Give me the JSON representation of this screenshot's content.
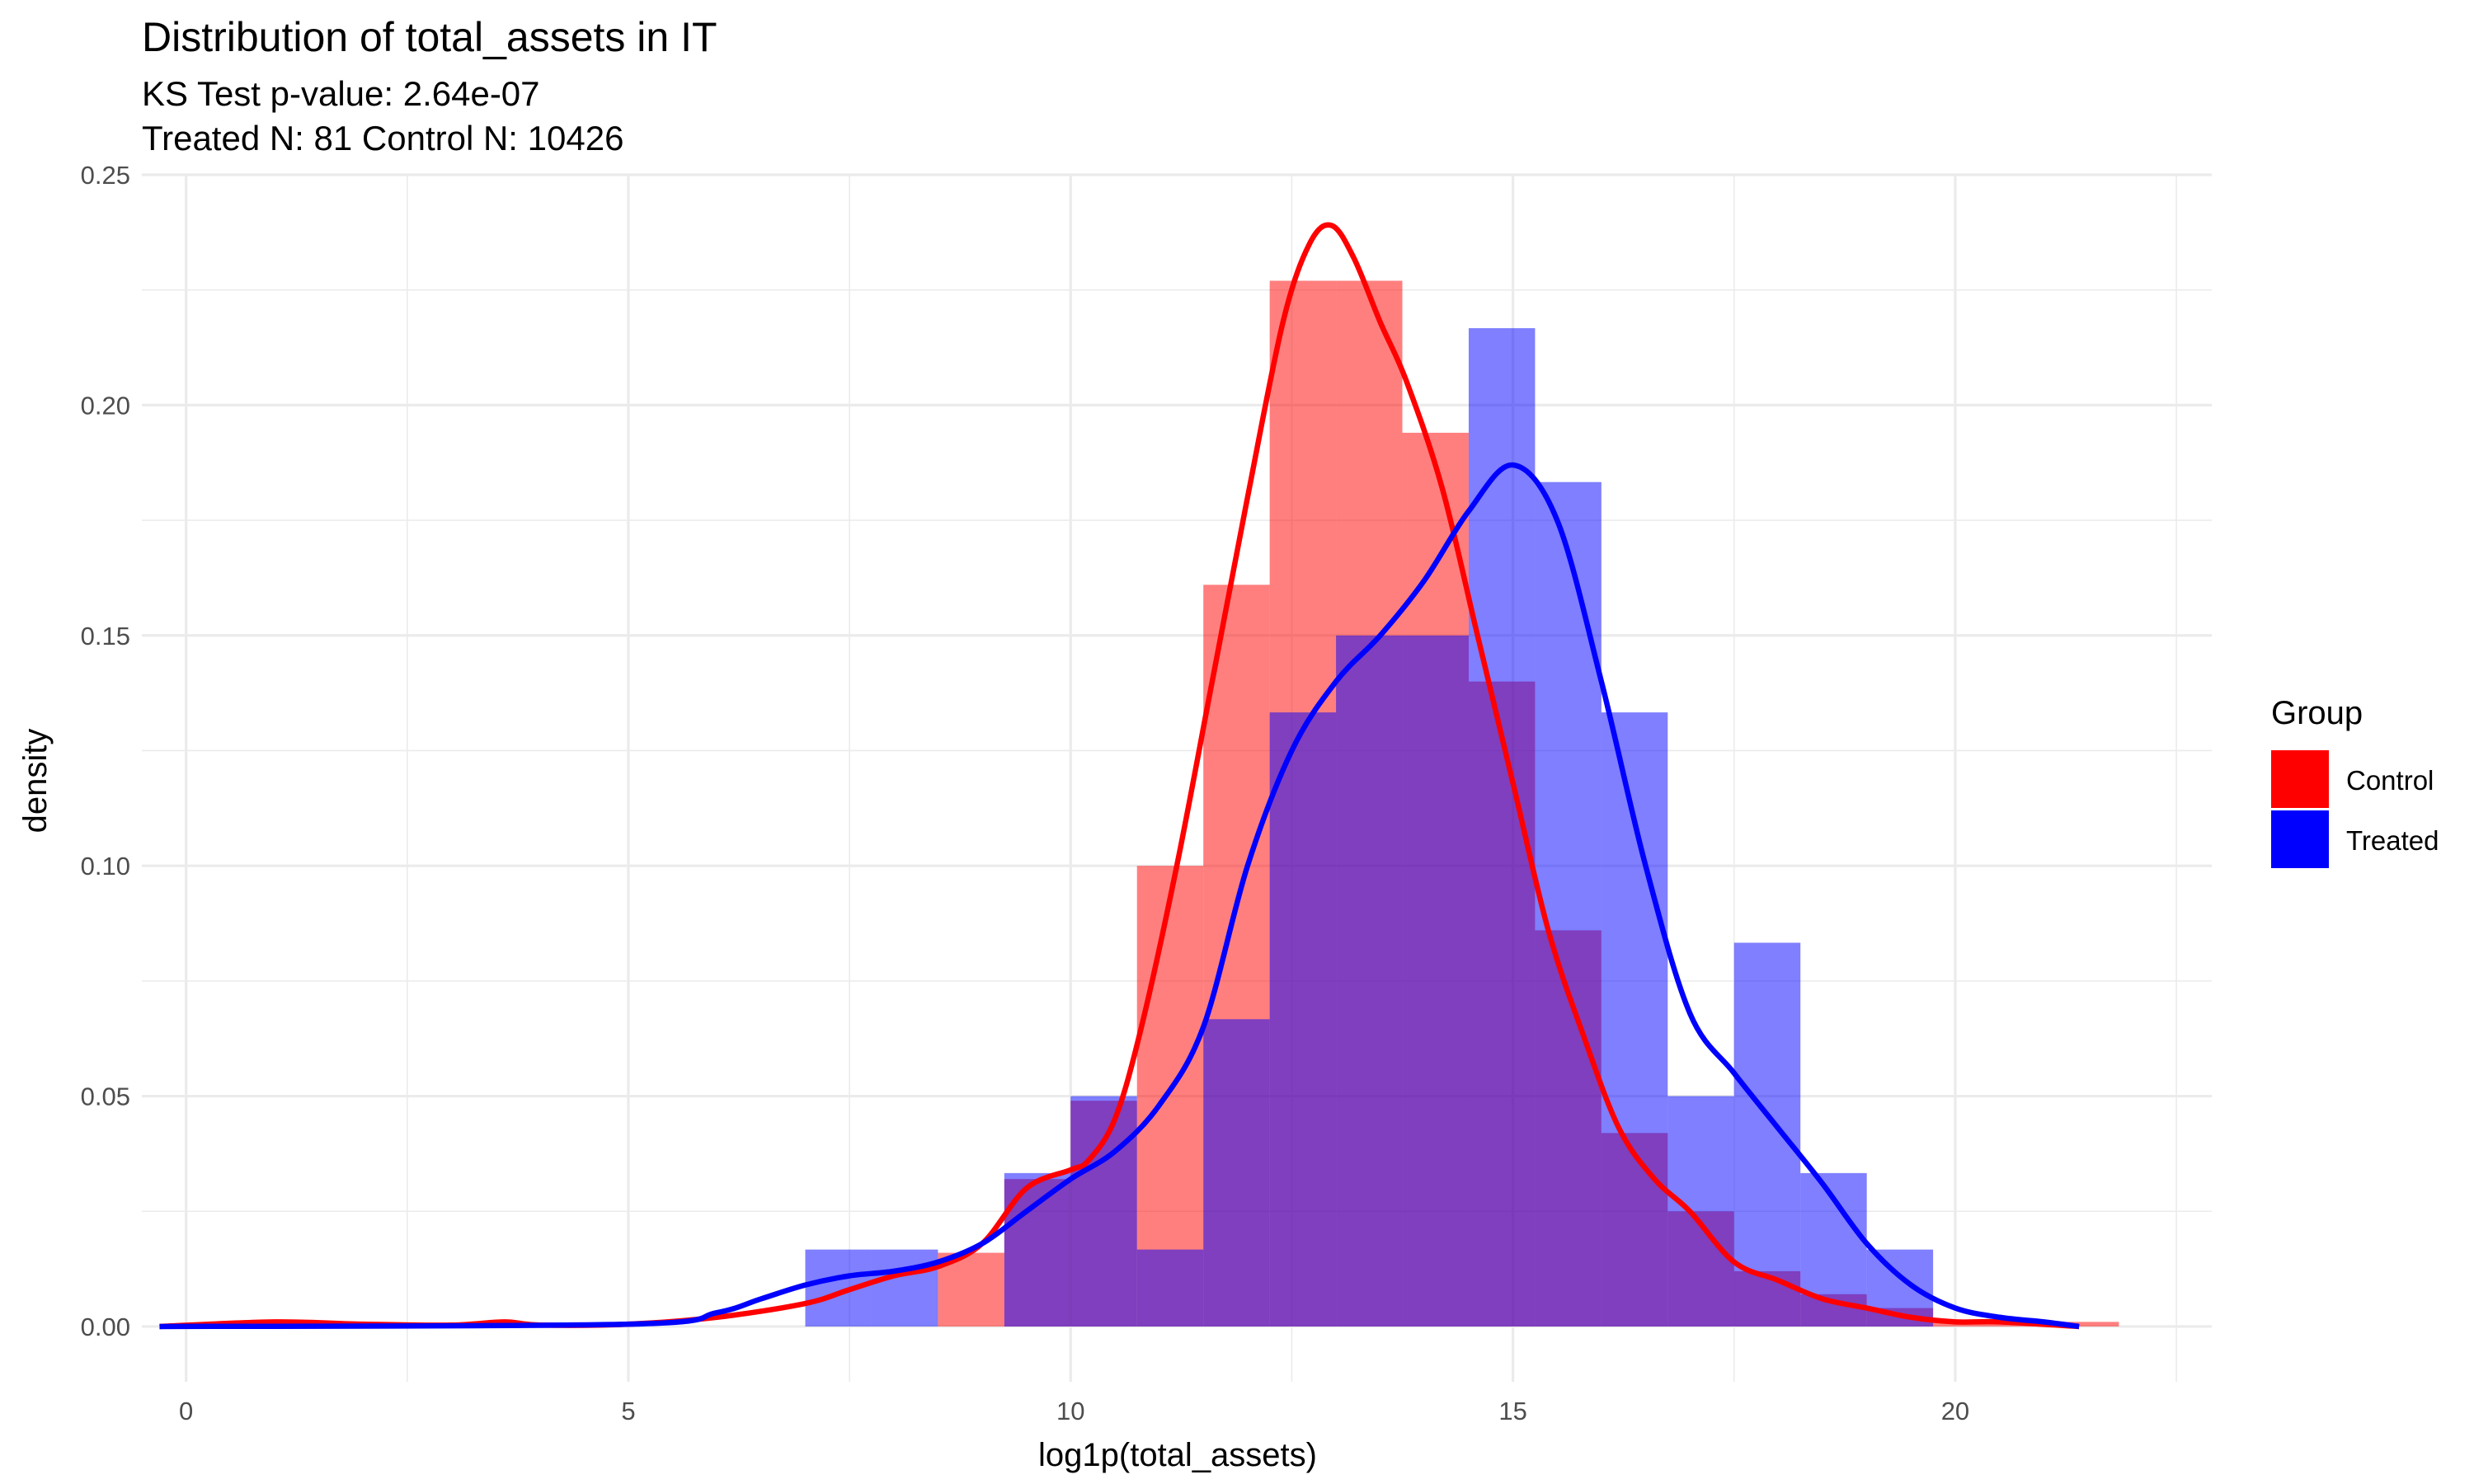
{
  "chart_data": {
    "type": "histogram",
    "title": "Distribution of total_assets in IT",
    "subtitle_lines": [
      "KS Test p-value: 2.64e-07",
      "Treated N: 81 Control N: 10426"
    ],
    "xlabel": "log1p(total_assets)",
    "ylabel": "density",
    "xlim": [
      -0.5,
      22.9
    ],
    "ylim": [
      -0.012,
      0.25
    ],
    "x_ticks": [
      0,
      5,
      10,
      15,
      20
    ],
    "x_tick_labels": [
      "0",
      "5",
      "10",
      "15",
      "20"
    ],
    "y_ticks": [
      0.0,
      0.05,
      0.1,
      0.15,
      0.2,
      0.25
    ],
    "y_tick_labels": [
      "0.00",
      "0.05",
      "0.10",
      "0.15",
      "0.20",
      "0.25"
    ],
    "grid": true,
    "legend": {
      "title": "Group",
      "position": "right",
      "entries": [
        {
          "label": "Control",
          "color": "#ff0000"
        },
        {
          "label": "Treated",
          "color": "#0000ff"
        }
      ]
    },
    "bin_width": 0.75,
    "series": [
      {
        "name": "Control",
        "color": "#ff0000",
        "bins": [
          {
            "x0": 8.5,
            "x1": 9.25,
            "y": 0.016
          },
          {
            "x0": 9.25,
            "x1": 10.0,
            "y": 0.032
          },
          {
            "x0": 10.0,
            "x1": 10.75,
            "y": 0.049
          },
          {
            "x0": 10.75,
            "x1": 11.5,
            "y": 0.1
          },
          {
            "x0": 11.5,
            "x1": 12.25,
            "y": 0.161
          },
          {
            "x0": 12.25,
            "x1": 13.0,
            "y": 0.227
          },
          {
            "x0": 13.0,
            "x1": 13.75,
            "y": 0.227
          },
          {
            "x0": 13.75,
            "x1": 14.5,
            "y": 0.194
          },
          {
            "x0": 14.5,
            "x1": 15.25,
            "y": 0.14
          },
          {
            "x0": 15.25,
            "x1": 16.0,
            "y": 0.086
          },
          {
            "x0": 16.0,
            "x1": 16.75,
            "y": 0.042
          },
          {
            "x0": 16.75,
            "x1": 17.5,
            "y": 0.025
          },
          {
            "x0": 17.5,
            "x1": 18.25,
            "y": 0.012
          },
          {
            "x0": 18.25,
            "x1": 19.0,
            "y": 0.007
          },
          {
            "x0": 19.0,
            "x1": 19.75,
            "y": 0.004
          },
          {
            "x0": 19.75,
            "x1": 20.5,
            "y": 0.001
          },
          {
            "x0": 20.5,
            "x1": 21.25,
            "y": 0.001
          },
          {
            "x0": 21.25,
            "x1": 21.85,
            "y": 0.001
          }
        ],
        "density_x": [
          -0.3,
          1,
          2,
          3,
          3.6,
          4,
          5,
          6,
          7,
          7.5,
          8,
          8.5,
          9,
          9.5,
          10,
          10.2,
          10.5,
          10.8,
          11.2,
          11.6,
          12,
          12.4,
          12.7,
          12.95,
          13.2,
          13.5,
          13.8,
          14.2,
          14.6,
          15,
          15.4,
          15.8,
          16.2,
          16.6,
          17,
          17.5,
          18,
          18.5,
          19,
          19.5,
          20,
          20.5,
          21.4
        ],
        "density_y": [
          0.0,
          0.001,
          0.0005,
          0.0003,
          0.001,
          0.0003,
          0.0005,
          0.002,
          0.005,
          0.008,
          0.011,
          0.013,
          0.018,
          0.03,
          0.034,
          0.036,
          0.045,
          0.065,
          0.1,
          0.14,
          0.18,
          0.218,
          0.235,
          0.239,
          0.232,
          0.218,
          0.205,
          0.182,
          0.15,
          0.118,
          0.086,
          0.063,
          0.043,
          0.032,
          0.025,
          0.014,
          0.01,
          0.006,
          0.004,
          0.002,
          0.001,
          0.001,
          0.0
        ]
      },
      {
        "name": "Treated",
        "color": "#0000ff",
        "bins": [
          {
            "x0": 7.0,
            "x1": 7.75,
            "y": 0.0167
          },
          {
            "x0": 7.75,
            "x1": 8.5,
            "y": 0.0167
          },
          {
            "x0": 8.5,
            "x1": 9.25,
            "y": 0.0
          },
          {
            "x0": 9.25,
            "x1": 10.0,
            "y": 0.0333
          },
          {
            "x0": 10.0,
            "x1": 10.75,
            "y": 0.05
          },
          {
            "x0": 10.75,
            "x1": 11.5,
            "y": 0.0167
          },
          {
            "x0": 11.5,
            "x1": 12.25,
            "y": 0.0667
          },
          {
            "x0": 12.25,
            "x1": 13.0,
            "y": 0.1333
          },
          {
            "x0": 13.0,
            "x1": 13.75,
            "y": 0.15
          },
          {
            "x0": 13.75,
            "x1": 14.5,
            "y": 0.15
          },
          {
            "x0": 14.5,
            "x1": 15.25,
            "y": 0.2167
          },
          {
            "x0": 15.25,
            "x1": 16.0,
            "y": 0.1833
          },
          {
            "x0": 16.0,
            "x1": 16.75,
            "y": 0.1333
          },
          {
            "x0": 16.75,
            "x1": 17.5,
            "y": 0.05
          },
          {
            "x0": 17.5,
            "x1": 18.25,
            "y": 0.0833
          },
          {
            "x0": 18.25,
            "x1": 19.0,
            "y": 0.0333
          },
          {
            "x0": 19.0,
            "x1": 19.75,
            "y": 0.0167
          }
        ],
        "density_x": [
          -0.3,
          5,
          6,
          6.5,
          7,
          7.5,
          8,
          8.5,
          9,
          9.5,
          10,
          10.5,
          11,
          11.5,
          12,
          12.5,
          13,
          13.5,
          14,
          14.5,
          15,
          15.5,
          16,
          16.5,
          17,
          17.5,
          18,
          18.5,
          19,
          19.5,
          20,
          20.5,
          21,
          21.4
        ],
        "density_y": [
          0.0,
          0.0005,
          0.003,
          0.006,
          0.009,
          0.011,
          0.012,
          0.014,
          0.018,
          0.025,
          0.032,
          0.038,
          0.048,
          0.065,
          0.1,
          0.125,
          0.14,
          0.15,
          0.162,
          0.177,
          0.187,
          0.175,
          0.14,
          0.1,
          0.068,
          0.055,
          0.043,
          0.031,
          0.018,
          0.009,
          0.004,
          0.002,
          0.001,
          0.0
        ]
      }
    ]
  }
}
